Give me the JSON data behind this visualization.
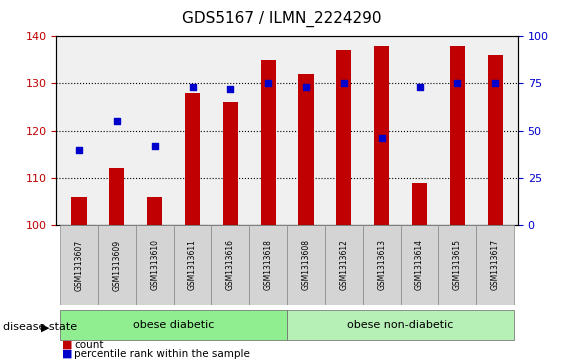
{
  "title": "GDS5167 / ILMN_2224290",
  "samples": [
    "GSM1313607",
    "GSM1313609",
    "GSM1313610",
    "GSM1313611",
    "GSM1313616",
    "GSM1313618",
    "GSM1313608",
    "GSM1313612",
    "GSM1313613",
    "GSM1313614",
    "GSM1313615",
    "GSM1313617"
  ],
  "counts": [
    106,
    112,
    106,
    128,
    126,
    135,
    132,
    137,
    138,
    109,
    138,
    136
  ],
  "percentiles": [
    40,
    55,
    42,
    73,
    72,
    75,
    73,
    75,
    46,
    73,
    75,
    75
  ],
  "ylim_left": [
    100,
    140
  ],
  "ylim_right": [
    0,
    100
  ],
  "yticks_left": [
    100,
    110,
    120,
    130,
    140
  ],
  "yticks_right": [
    0,
    25,
    50,
    75,
    100
  ],
  "bar_color": "#c00000",
  "dot_color": "#0000cc",
  "background_color": "#ffffff",
  "plot_bg_color": "#f0f0f0",
  "group1_label": "obese diabetic",
  "group2_label": "obese non-diabetic",
  "group1_count": 6,
  "group2_count": 6,
  "group_bg_color": "#90ee90",
  "disease_state_label": "disease state",
  "legend_count_label": "count",
  "legend_percentile_label": "percentile rank within the sample"
}
